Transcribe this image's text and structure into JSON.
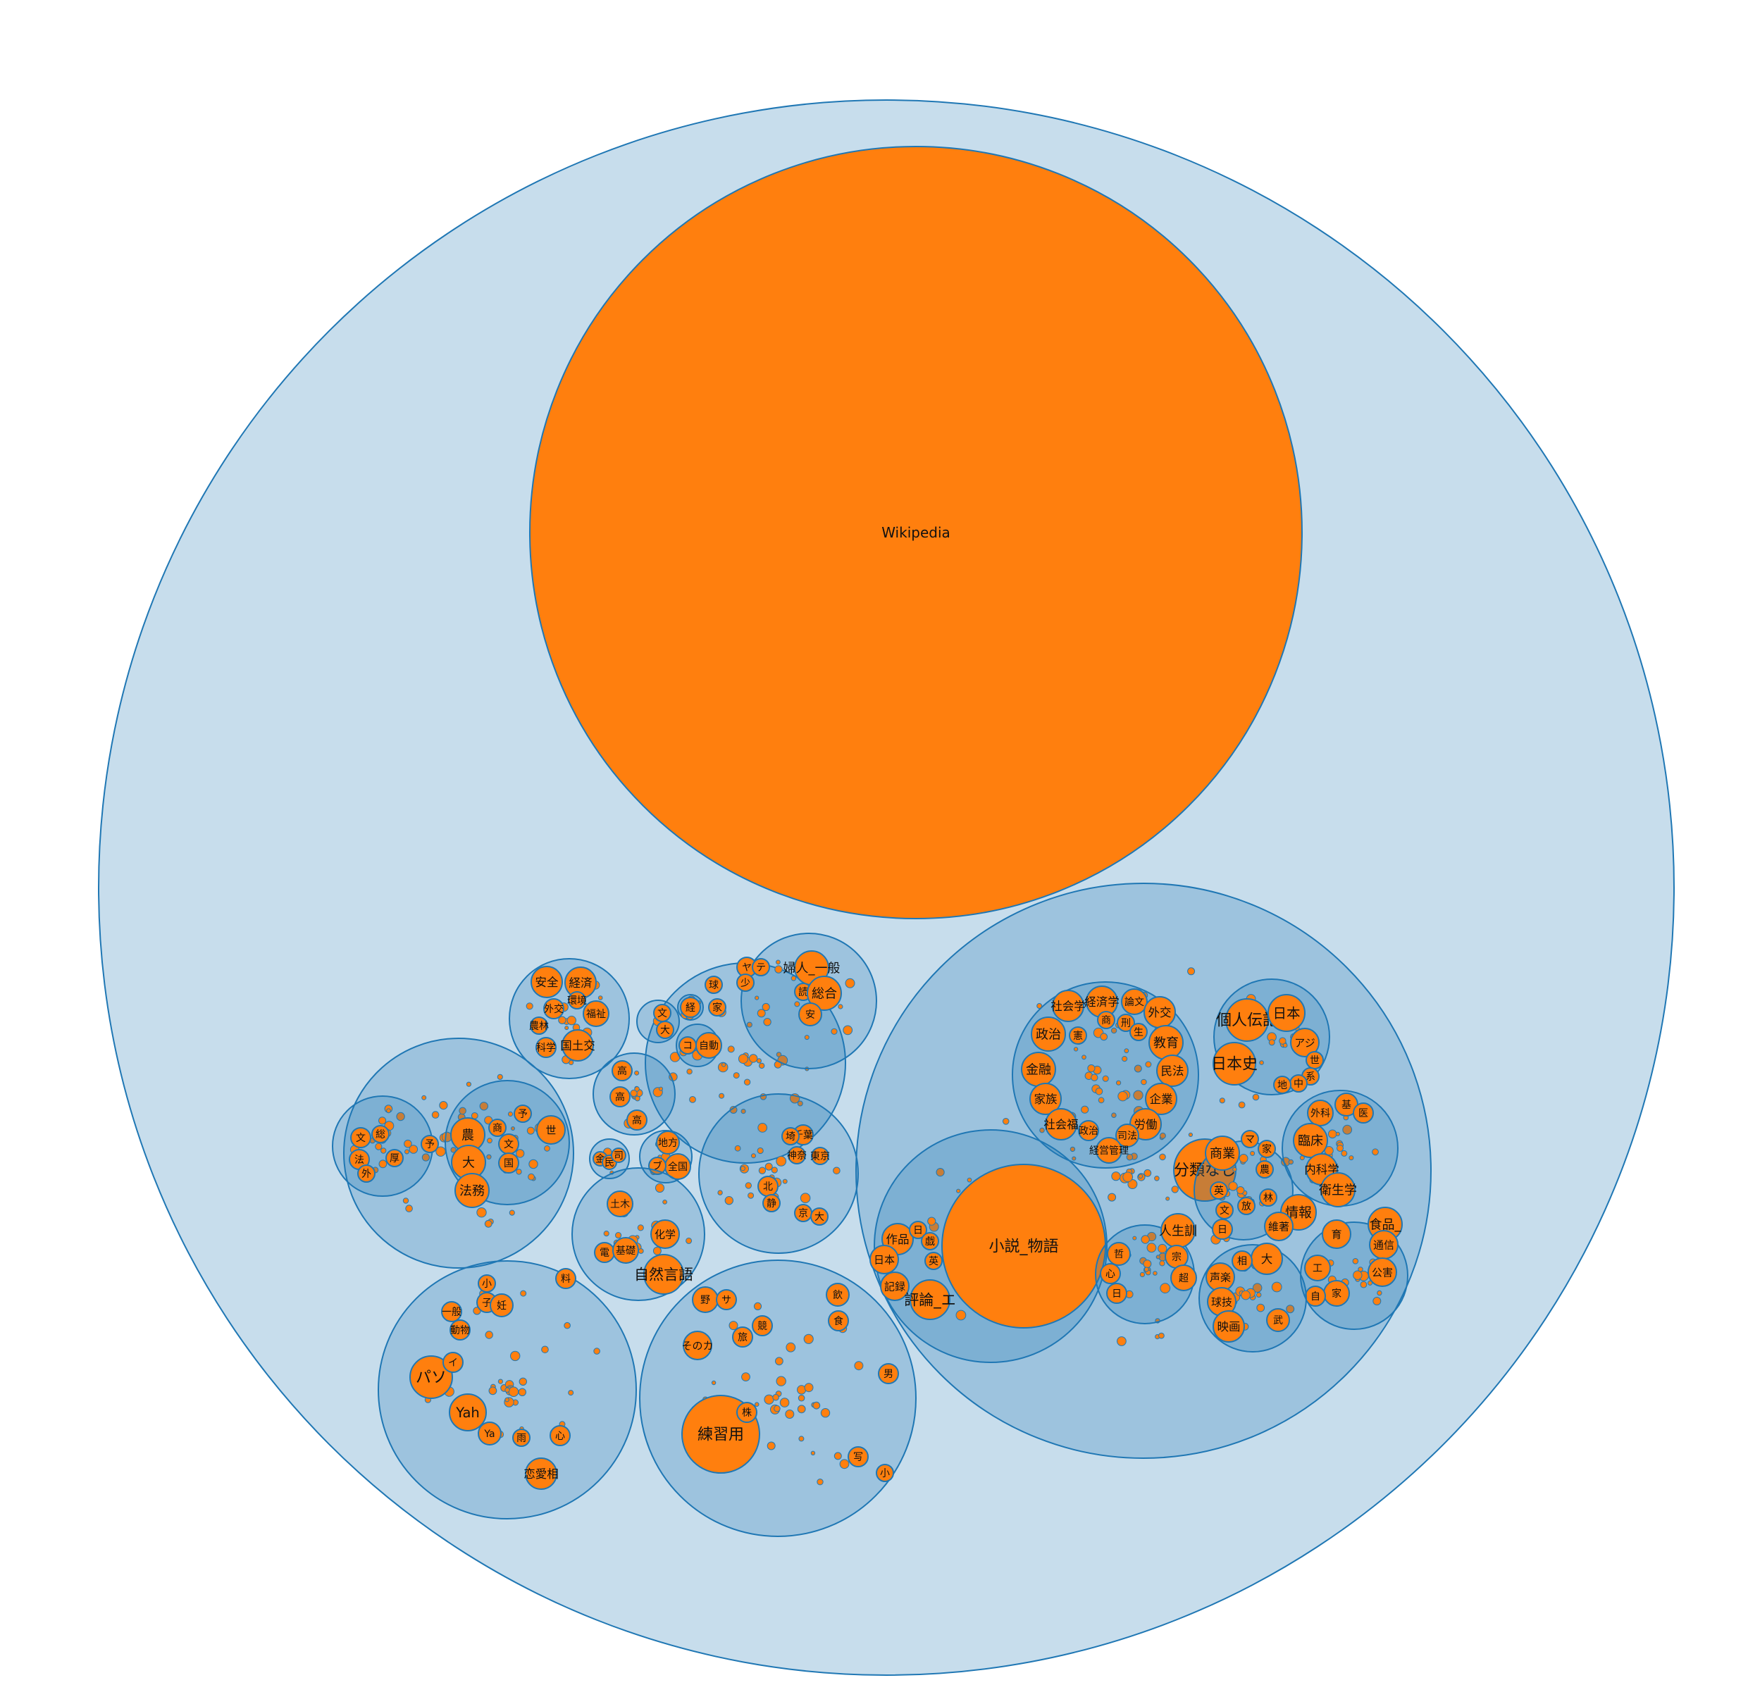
{
  "chart_data": {
    "type": "circle-packing",
    "colors": {
      "group_fill": "#1f77b4",
      "leaf_fill": "#ff7f0e",
      "stroke": "#1f77b4"
    },
    "root": {
      "children": [
        {
          "label": "Wikipedia"
        },
        {
          "children": [
            {
              "children": [
                {
                  "label": "社会学"
                },
                {
                  "label": "経済学"
                },
                {
                  "label": "論文"
                },
                {
                  "label": "外交"
                },
                {
                  "label": "政治"
                },
                {
                  "label": "憲"
                },
                {
                  "label": "商"
                },
                {
                  "label": "刑"
                },
                {
                  "label": "生"
                },
                {
                  "label": "教育"
                },
                {
                  "label": "金融"
                },
                {
                  "label": "民法"
                },
                {
                  "label": "企業"
                },
                {
                  "label": "家族"
                },
                {
                  "label": "労働"
                },
                {
                  "label": "社会福"
                },
                {
                  "label": "政治"
                },
                {
                  "label": "司法"
                },
                {
                  "label": "経営管理"
                }
              ]
            },
            {
              "children": [
                {
                  "label": "個人伝記"
                },
                {
                  "label": "日本"
                },
                {
                  "label": "アジ"
                },
                {
                  "label": "日本史"
                },
                {
                  "label": "世"
                },
                {
                  "label": "系"
                },
                {
                  "label": "中"
                },
                {
                  "label": "地"
                }
              ]
            },
            {
              "children": [
                {
                  "label": "外科"
                },
                {
                  "label": "基"
                },
                {
                  "label": "医"
                },
                {
                  "label": "臨床"
                },
                {
                  "label": "内科学"
                },
                {
                  "label": "衛生学"
                }
              ]
            },
            {
              "children": [
                {
                  "label": "小説_物語"
                },
                {
                  "label": "作品"
                },
                {
                  "label": "日"
                },
                {
                  "label": "戯"
                },
                {
                  "label": "英"
                },
                {
                  "label": "日本"
                },
                {
                  "label": "記録"
                },
                {
                  "label": "評論_エ"
                }
              ]
            },
            {
              "label": "分類なし"
            },
            {
              "children": [
                {
                  "label": "商業"
                },
                {
                  "label": "マ"
                },
                {
                  "label": "家"
                },
                {
                  "label": "農"
                },
                {
                  "label": "林"
                },
                {
                  "label": "放"
                },
                {
                  "label": "情報"
                },
                {
                  "label": "維著"
                },
                {
                  "label": "英"
                },
                {
                  "label": "文"
                },
                {
                  "label": "日"
                }
              ]
            },
            {
              "children": [
                {
                  "label": "人生訓"
                },
                {
                  "label": "宗"
                },
                {
                  "label": "超"
                },
                {
                  "label": "哲"
                },
                {
                  "label": "心"
                },
                {
                  "label": "日"
                }
              ]
            },
            {
              "children": [
                {
                  "label": "食品_"
                },
                {
                  "label": "通信"
                },
                {
                  "label": "公害"
                },
                {
                  "label": "工"
                },
                {
                  "label": "家"
                },
                {
                  "label": "自"
                },
                {
                  "label": "育"
                }
              ]
            },
            {
              "children": [
                {
                  "label": "声楽"
                },
                {
                  "label": "大"
                },
                {
                  "label": "球技"
                },
                {
                  "label": "映画"
                },
                {
                  "label": "相"
                },
                {
                  "label": "武"
                }
              ]
            }
          ]
        },
        {
          "children": [
            {
              "children": [
                {
                  "label": "婦人_一般"
                },
                {
                  "label": "読"
                },
                {
                  "label": "総合"
                },
                {
                  "label": "安"
                },
                {
                  "label": "ヤ"
                },
                {
                  "label": "テ"
                },
                {
                  "label": "少"
                },
                {
                  "label": "球"
                },
                {
                  "label": "家"
                }
              ]
            },
            {
              "children": [
                {
                  "label": "文"
                },
                {
                  "label": "大"
                }
              ]
            },
            {
              "children": [
                {
                  "label": "自動"
                },
                {
                  "label": "コ"
                }
              ]
            },
            {
              "children": [
                {
                  "label": "経"
                }
              ]
            }
          ]
        },
        {
          "children": [
            {
              "label": "安全"
            },
            {
              "label": "経済"
            },
            {
              "label": "外交"
            },
            {
              "label": "農林"
            },
            {
              "label": "環境"
            },
            {
              "label": "福祉"
            },
            {
              "label": "科学"
            },
            {
              "label": "国土交"
            }
          ]
        },
        {
          "children": [
            {
              "children": [
                {
                  "label": "文"
                },
                {
                  "label": "法"
                },
                {
                  "label": "総"
                },
                {
                  "label": "予"
                },
                {
                  "label": "外"
                },
                {
                  "label": "厚"
                }
              ]
            },
            {
              "children": [
                {
                  "label": "予"
                },
                {
                  "label": "農"
                },
                {
                  "label": "商"
                },
                {
                  "label": "大"
                },
                {
                  "label": "文"
                },
                {
                  "label": "法務"
                },
                {
                  "label": "国"
                },
                {
                  "label": "世"
                }
              ]
            }
          ]
        },
        {
          "children": [
            {
              "label": "高"
            },
            {
              "label": "高"
            },
            {
              "label": "高"
            }
          ]
        },
        {
          "children": [
            {
              "label": "金"
            },
            {
              "label": "民"
            },
            {
              "label": "司"
            }
          ]
        },
        {
          "children": [
            {
              "label": "地方"
            },
            {
              "label": "全国"
            },
            {
              "label": "ブ"
            }
          ]
        },
        {
          "children": [
            {
              "label": "土木"
            },
            {
              "label": "化学"
            },
            {
              "label": "電"
            },
            {
              "label": "基礎"
            },
            {
              "label": "自然言語"
            }
          ]
        },
        {
          "children": [
            {
              "label": "千葉"
            },
            {
              "label": "神奈"
            },
            {
              "label": "東京"
            },
            {
              "label": "北"
            },
            {
              "label": "京"
            },
            {
              "label": "大"
            },
            {
              "label": "埼"
            },
            {
              "label": "静"
            }
          ]
        },
        {
          "children": [
            {
              "label": "小"
            },
            {
              "label": "子"
            },
            {
              "label": "妊"
            },
            {
              "label": "料"
            },
            {
              "label": "一般"
            },
            {
              "label": "動物"
            },
            {
              "label": "パソ"
            },
            {
              "label": "イ"
            },
            {
              "label": "Yah"
            },
            {
              "label": "Ya"
            },
            {
              "label": "恋愛相"
            },
            {
              "label": "心"
            },
            {
              "label": "雨"
            }
          ]
        },
        {
          "children": [
            {
              "label": "練習用"
            },
            {
              "label": "野"
            },
            {
              "label": "サ"
            },
            {
              "label": "そのカ"
            },
            {
              "label": "旅"
            },
            {
              "label": "競"
            },
            {
              "label": "飲"
            },
            {
              "label": "食"
            },
            {
              "label": "株"
            },
            {
              "label": "男"
            },
            {
              "label": "写"
            },
            {
              "label": "小"
            }
          ]
        }
      ]
    }
  }
}
